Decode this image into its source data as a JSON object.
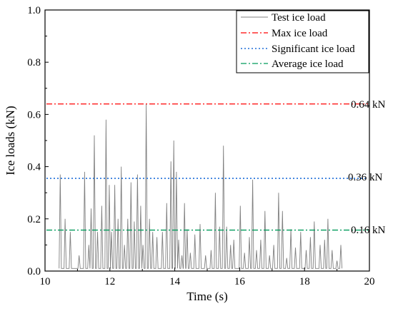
{
  "chart_data": {
    "type": "line",
    "xlabel": "Time (s)",
    "ylabel": "Ice loads (kN)",
    "xlim": [
      10,
      20
    ],
    "ylim": [
      0.0,
      1.0
    ],
    "xticks": [
      10,
      12,
      14,
      16,
      18,
      20
    ],
    "yticks": [
      0.0,
      0.2,
      0.4,
      0.6,
      0.8,
      1.0
    ],
    "xtick_labels": [
      "10",
      "12",
      "14",
      "16",
      "18",
      "20"
    ],
    "ytick_labels": [
      "0.0",
      "0.2",
      "0.4",
      "0.6",
      "0.8",
      "1.0"
    ],
    "grid": false,
    "legend_position": "top-right",
    "legend": [
      {
        "label": "Test ice load",
        "color": "#808080",
        "style": "solid"
      },
      {
        "label": "Max ice load",
        "color": "#ff0000",
        "style": "dash-dot"
      },
      {
        "label": "Significant ice load",
        "color": "#1e6fd9",
        "style": "dotted"
      },
      {
        "label": "Average ice load",
        "color": "#009b5a",
        "style": "dash-dot"
      }
    ],
    "reference_lines": [
      {
        "name": "Max ice load",
        "value": 0.64,
        "label": "0.64 kN",
        "color": "#ff0000"
      },
      {
        "name": "Significant ice load",
        "value": 0.355,
        "label": "0.36 kN",
        "color": "#1e6fd9"
      },
      {
        "name": "Average ice load",
        "value": 0.157,
        "label": "0.16 kN",
        "color": "#009b5a"
      }
    ],
    "series": [
      {
        "name": "Test ice load",
        "color": "#808080",
        "peaks": [
          [
            10.47,
            0.37
          ],
          [
            10.62,
            0.2
          ],
          [
            10.78,
            0.15
          ],
          [
            11.05,
            0.06
          ],
          [
            11.22,
            0.38
          ],
          [
            11.35,
            0.1
          ],
          [
            11.42,
            0.24
          ],
          [
            11.52,
            0.52
          ],
          [
            11.62,
            0.15
          ],
          [
            11.75,
            0.25
          ],
          [
            11.88,
            0.58
          ],
          [
            11.98,
            0.33
          ],
          [
            12.05,
            0.15
          ],
          [
            12.15,
            0.33
          ],
          [
            12.25,
            0.2
          ],
          [
            12.35,
            0.4
          ],
          [
            12.45,
            0.1
          ],
          [
            12.55,
            0.2
          ],
          [
            12.65,
            0.34
          ],
          [
            12.75,
            0.19
          ],
          [
            12.85,
            0.37
          ],
          [
            12.95,
            0.25
          ],
          [
            13.02,
            0.1
          ],
          [
            13.12,
            0.64
          ],
          [
            13.22,
            0.2
          ],
          [
            13.32,
            0.15
          ],
          [
            13.45,
            0.13
          ],
          [
            13.62,
            0.15
          ],
          [
            13.75,
            0.26
          ],
          [
            13.88,
            0.42
          ],
          [
            13.97,
            0.5
          ],
          [
            14.05,
            0.38
          ],
          [
            14.12,
            0.12
          ],
          [
            14.22,
            0.06
          ],
          [
            14.3,
            0.26
          ],
          [
            14.38,
            0.16
          ],
          [
            14.48,
            0.07
          ],
          [
            14.62,
            0.14
          ],
          [
            14.78,
            0.18
          ],
          [
            14.95,
            0.06
          ],
          [
            15.12,
            0.08
          ],
          [
            15.25,
            0.3
          ],
          [
            15.38,
            0.17
          ],
          [
            15.5,
            0.48
          ],
          [
            15.6,
            0.17
          ],
          [
            15.72,
            0.1
          ],
          [
            15.82,
            0.12
          ],
          [
            16.02,
            0.25
          ],
          [
            16.15,
            0.07
          ],
          [
            16.3,
            0.13
          ],
          [
            16.4,
            0.35
          ],
          [
            16.52,
            0.08
          ],
          [
            16.65,
            0.12
          ],
          [
            16.78,
            0.23
          ],
          [
            16.92,
            0.06
          ],
          [
            17.05,
            0.1
          ],
          [
            17.2,
            0.3
          ],
          [
            17.32,
            0.23
          ],
          [
            17.45,
            0.05
          ],
          [
            17.58,
            0.16
          ],
          [
            17.72,
            0.09
          ],
          [
            17.88,
            0.15
          ],
          [
            18.05,
            0.08
          ],
          [
            18.18,
            0.13
          ],
          [
            18.3,
            0.19
          ],
          [
            18.48,
            0.1
          ],
          [
            18.62,
            0.12
          ],
          [
            18.72,
            0.2
          ],
          [
            18.85,
            0.08
          ],
          [
            19.0,
            0.04
          ],
          [
            19.12,
            0.1
          ]
        ]
      }
    ]
  }
}
